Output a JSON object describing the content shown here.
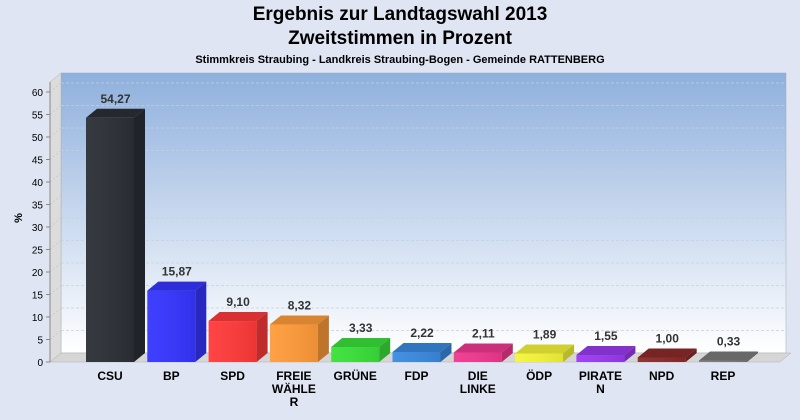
{
  "chart_data": {
    "type": "bar",
    "title": "Ergebnis zur Landtagswahl 2013",
    "subtitle": "Zweitstimmen in Prozent",
    "subsubtitle": "Stimmkreis Straubing - Landkreis Straubing-Bogen - Gemeinde RATTENBERG",
    "xlabel": "",
    "ylabel": "%",
    "ylim": [
      0,
      60
    ],
    "yticks": [
      0,
      5,
      10,
      15,
      20,
      25,
      30,
      35,
      40,
      45,
      50,
      55,
      60
    ],
    "grid": true,
    "categories": [
      "CSU",
      "BP",
      "SPD",
      "FREIE WÄHLER",
      "GRÜNE",
      "FDP",
      "DIE LINKE",
      "ÖDP",
      "PIRATEN",
      "NPD",
      "REP"
    ],
    "category_lines": [
      [
        "CSU"
      ],
      [
        "BP"
      ],
      [
        "SPD"
      ],
      [
        "FREIE",
        "WÄHLE",
        "R"
      ],
      [
        "GRÜNE"
      ],
      [
        "FDP"
      ],
      [
        "DIE",
        "LINKE"
      ],
      [
        "ÖDP"
      ],
      [
        "PIRATE",
        "N"
      ],
      [
        "NPD"
      ],
      [
        "REP"
      ]
    ],
    "values": [
      54.27,
      15.87,
      9.1,
      8.32,
      3.33,
      2.22,
      2.11,
      1.89,
      1.55,
      1.0,
      0.33
    ],
    "value_labels": [
      "54,27",
      "15,87",
      "9,10",
      "8,32",
      "3,33",
      "2,22",
      "2,11",
      "1,89",
      "1,55",
      "1,00",
      "0,33"
    ],
    "colors": [
      "#2b2f36",
      "#3535ff",
      "#ff3a3a",
      "#ff9b3a",
      "#3ae03a",
      "#3a8ae0",
      "#f0388f",
      "#f5f53a",
      "#9a3af0",
      "#8b2a2a",
      "#7a7a7a"
    ]
  }
}
